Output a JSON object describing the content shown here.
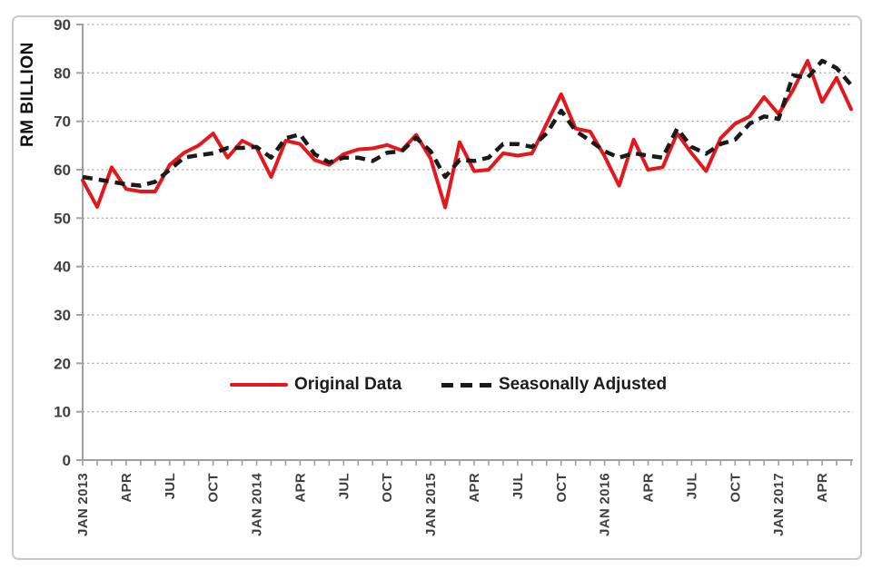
{
  "figure": {
    "background": "#ffffff",
    "frame_color": "#c9c9c9",
    "axis_color": "#a0a0a0",
    "gridline_color": "#ababab",
    "tick_label_color": "#3f3f3f"
  },
  "y_axis": {
    "title": "RM BILLION",
    "ticks": [
      0,
      10,
      20,
      30,
      40,
      50,
      60,
      70,
      80,
      90
    ],
    "min": 0,
    "max": 90
  },
  "x_axis": {
    "unit": "month",
    "start": "JAN 2013",
    "end": "JUN 2017",
    "tick_labels": [
      {
        "i": 0,
        "label": "JAN 2013"
      },
      {
        "i": 3,
        "label": "APR"
      },
      {
        "i": 6,
        "label": "JUL"
      },
      {
        "i": 9,
        "label": "OCT"
      },
      {
        "i": 12,
        "label": "JAN 2014"
      },
      {
        "i": 15,
        "label": "APR"
      },
      {
        "i": 18,
        "label": "JUL"
      },
      {
        "i": 21,
        "label": "OCT"
      },
      {
        "i": 24,
        "label": "JAN 2015"
      },
      {
        "i": 27,
        "label": "APR"
      },
      {
        "i": 30,
        "label": "JUL"
      },
      {
        "i": 33,
        "label": "OCT"
      },
      {
        "i": 36,
        "label": "JAN 2016"
      },
      {
        "i": 39,
        "label": "APR"
      },
      {
        "i": 42,
        "label": "JUL"
      },
      {
        "i": 45,
        "label": "OCT"
      },
      {
        "i": 48,
        "label": "JAN 2017"
      },
      {
        "i": 51,
        "label": "APR"
      }
    ]
  },
  "legend": {
    "position": "inside-bottom-center",
    "items": [
      {
        "label": "Original Data",
        "style": "solid",
        "color": "#e4181c"
      },
      {
        "label": "Seasonally Adjusted",
        "style": "dashed",
        "color": "#1a1a1a"
      }
    ]
  },
  "chart_data": {
    "type": "line",
    "title": "",
    "xlabel": "",
    "ylabel": "RM BILLION",
    "ylim": [
      0,
      90
    ],
    "grid": "horizontal-dotted",
    "n_points": 54,
    "x_start": "JAN 2013",
    "x_end": "JUN 2017",
    "series": [
      {
        "name": "Original Data",
        "color": "#e4181c",
        "style": "solid",
        "values": [
          57.8,
          52.3,
          60.5,
          56.0,
          55.5,
          55.5,
          61.0,
          63.5,
          65.0,
          67.5,
          62.5,
          66.0,
          64.5,
          58.5,
          66.0,
          65.3,
          62.0,
          61.0,
          63.2,
          64.2,
          64.4,
          65.1,
          64.0,
          67.2,
          62.3,
          52.2,
          65.7,
          59.7,
          60.0,
          63.4,
          62.9,
          63.4,
          69.5,
          75.6,
          68.5,
          67.9,
          62.8,
          56.7,
          66.2,
          60.0,
          60.5,
          67.5,
          63.4,
          59.7,
          66.5,
          69.5,
          71.0,
          75.0,
          71.5,
          76.5,
          82.5,
          74.0,
          79.0,
          72.5
        ]
      },
      {
        "name": "Seasonally Adjusted",
        "color": "#1a1a1a",
        "style": "dashed",
        "values": [
          58.5,
          58.0,
          57.5,
          57.0,
          56.7,
          57.5,
          60.0,
          62.5,
          63.0,
          63.4,
          64.5,
          64.5,
          64.7,
          62.5,
          66.5,
          67.3,
          63.2,
          61.5,
          62.5,
          62.5,
          61.8,
          63.5,
          63.8,
          66.6,
          63.8,
          58.5,
          62.0,
          61.8,
          62.5,
          65.3,
          65.3,
          64.7,
          67.5,
          72.2,
          68.0,
          66.0,
          63.8,
          62.5,
          63.4,
          62.9,
          62.5,
          68.5,
          64.7,
          63.3,
          65.3,
          66.2,
          69.5,
          71.0,
          70.5,
          79.5,
          79.0,
          82.5,
          81.0,
          77.5
        ]
      }
    ]
  }
}
